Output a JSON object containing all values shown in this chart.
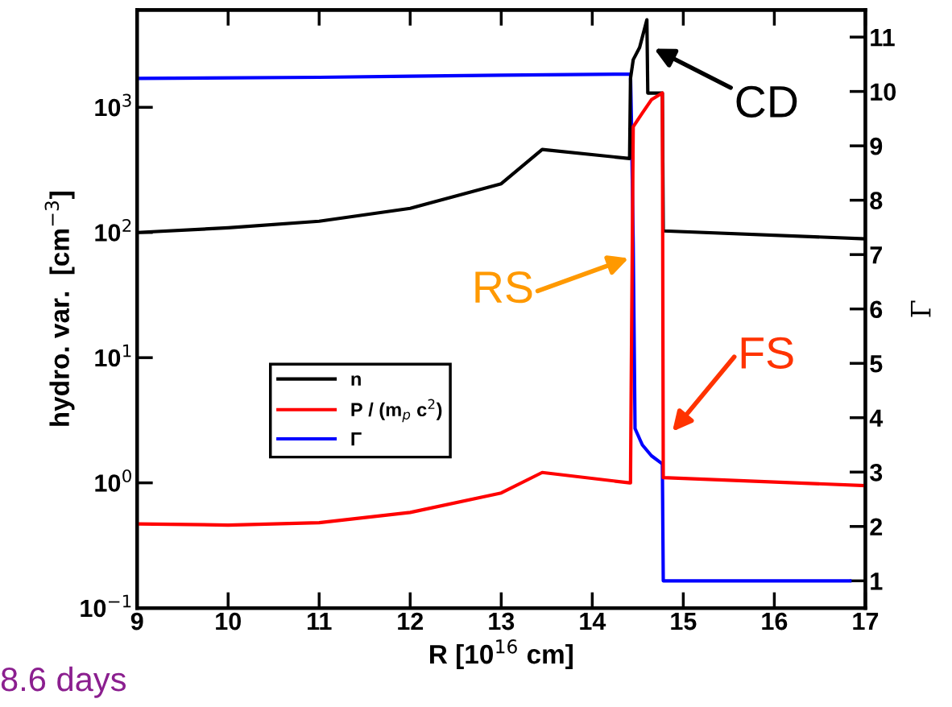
{
  "chart_data": {
    "type": "line",
    "xlabel": "R [10$^{16}$ cm]",
    "ylabel": "hydro. var.  [cm$^{−3}$]",
    "y2label": "Γ",
    "series": [
      {
        "name": "n",
        "color": "#000000",
        "x": [
          9,
          10,
          11,
          12,
          13,
          13.45,
          14.41,
          14.42,
          14.45,
          14.52,
          14.6,
          14.61,
          14.77,
          14.78,
          17
        ],
        "values": [
          100,
          109,
          123,
          156,
          245,
          460,
          390,
          1700,
          2400,
          3000,
          5000,
          1300,
          1300,
          103,
          89
        ]
      },
      {
        "name": "P / (m$_{p}$ c$^{2}$)",
        "color": "#ff0000",
        "x": [
          9,
          10,
          11,
          12,
          13,
          13.45,
          14.41,
          14.42,
          14.43,
          14.45,
          14.55,
          14.65,
          14.77,
          14.78,
          17
        ],
        "values": [
          0.47,
          0.46,
          0.48,
          0.58,
          0.83,
          1.21,
          1.0,
          1.0,
          10,
          700,
          900,
          1150,
          1300,
          1.1,
          0.95
        ]
      },
      {
        "name": "Γ",
        "color": "#0000ff",
        "axis": "y2",
        "x": [
          9,
          11,
          12,
          13,
          14.41,
          14.42,
          14.43,
          14.45,
          14.47,
          14.55,
          14.65,
          14.77,
          14.78,
          16.83
        ],
        "values": [
          10.24,
          10.26,
          10.28,
          10.3,
          10.32,
          10.32,
          9.5,
          7.2,
          3.8,
          3.5,
          3.3,
          3.15,
          1,
          1
        ]
      }
    ],
    "xlim": [
      9,
      17
    ],
    "xticks": [
      9,
      10,
      11,
      12,
      13,
      14,
      15,
      16,
      17
    ],
    "log": "y",
    "ylim": [
      0.1,
      6000
    ],
    "yticks": [
      {
        "value": 0.1,
        "label": "10$^{−1}$"
      },
      {
        "value": 1,
        "label": "10$^{0}$"
      },
      {
        "value": 10,
        "label": "10$^{1}$"
      },
      {
        "value": 100,
        "label": "10$^{2}$"
      },
      {
        "value": 1000,
        "label": "10$^{3}$"
      }
    ],
    "y2lim": [
      0.5,
      11.5
    ],
    "y2ticks": [
      1,
      2,
      3,
      4,
      5,
      6,
      7,
      8,
      9,
      10,
      11
    ],
    "legend": "center left",
    "grid": false,
    "marker": "none",
    "line_style": "solid",
    "annotations": [
      "CD",
      "RS",
      "FS",
      "8.6 days"
    ]
  }
}
